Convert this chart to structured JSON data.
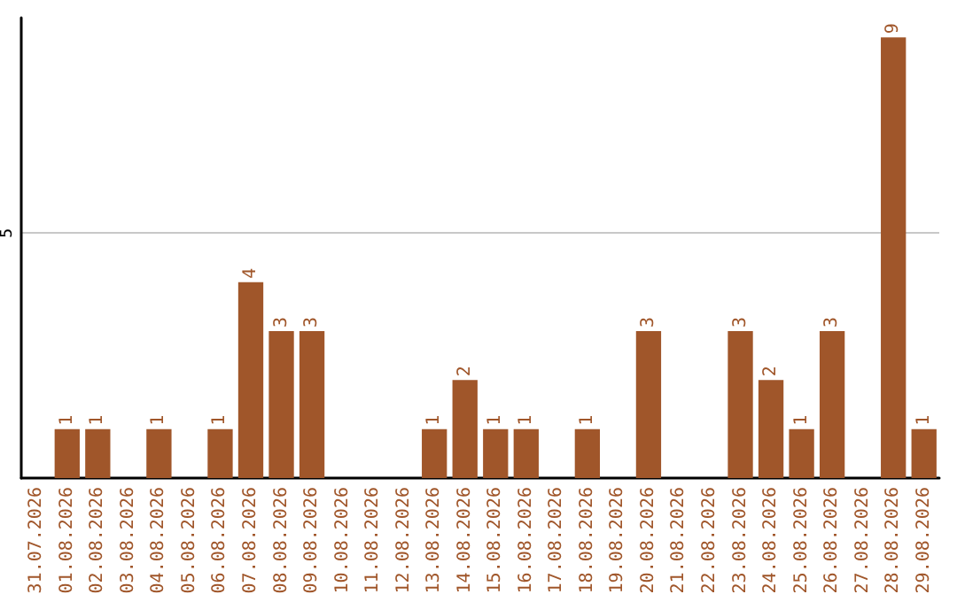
{
  "chart_data": {
    "type": "bar",
    "categories": [
      "31.07.2026",
      "01.08.2026",
      "02.08.2026",
      "03.08.2026",
      "04.08.2026",
      "05.08.2026",
      "06.08.2026",
      "07.08.2026",
      "08.08.2026",
      "09.08.2026",
      "10.08.2026",
      "11.08.2026",
      "12.08.2026",
      "13.08.2026",
      "14.08.2026",
      "15.08.2026",
      "16.08.2026",
      "17.08.2026",
      "18.08.2026",
      "19.08.2026",
      "20.08.2026",
      "21.08.2026",
      "22.08.2026",
      "23.08.2026",
      "24.08.2026",
      "25.08.2026",
      "26.08.2026",
      "27.08.2026",
      "28.08.2026",
      "29.08.2026"
    ],
    "values": [
      0,
      1,
      1,
      0,
      1,
      0,
      1,
      4,
      3,
      3,
      0,
      0,
      0,
      1,
      2,
      1,
      1,
      0,
      1,
      0,
      3,
      0,
      0,
      3,
      2,
      1,
      3,
      0,
      9,
      1
    ],
    "value_labels": [
      null,
      "1",
      "1",
      null,
      "1",
      null,
      "1",
      "4",
      "3",
      "3",
      null,
      null,
      null,
      "1",
      "2",
      "1",
      "1",
      null,
      "1",
      null,
      "3",
      null,
      null,
      "3",
      "2",
      "1",
      "3",
      null,
      "9",
      "1"
    ],
    "color": "#a0562a",
    "ylim": [
      0,
      9.4
    ],
    "yticks": [
      5
    ],
    "grid": "y"
  }
}
